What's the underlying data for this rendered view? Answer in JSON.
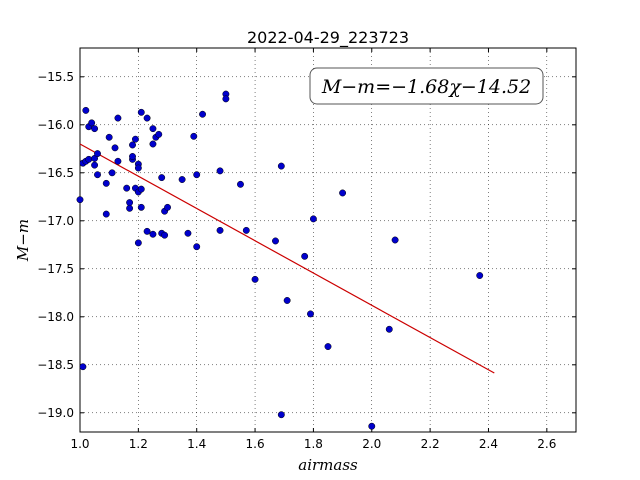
{
  "chart_data": {
    "type": "scatter",
    "title": "2022-04-29_223723",
    "xlabel": "airmass",
    "ylabel": "M−m",
    "xlim": [
      1.0,
      2.7
    ],
    "ylim": [
      -19.2,
      -15.2
    ],
    "y_inverted": true,
    "grid": true,
    "xticks": [
      1.0,
      1.2,
      1.4,
      1.6,
      1.8,
      2.0,
      2.2,
      2.4,
      2.6
    ],
    "xtick_labels": [
      "1.0",
      "1.2",
      "1.4",
      "1.6",
      "1.8",
      "2.0",
      "2.2",
      "2.4",
      "2.6"
    ],
    "yticks": [
      -15.5,
      -16.0,
      -16.5,
      -17.0,
      -17.5,
      -18.0,
      -18.5,
      -19.0
    ],
    "ytick_labels": [
      "−15.5",
      "−16.0",
      "−16.5",
      "−17.0",
      "−17.5",
      "−18.0",
      "−18.5",
      "−19.0"
    ],
    "annotation": "M−m=−1.68χ−14.52",
    "fit_line": {
      "slope": -1.68,
      "intercept": -14.52,
      "x_range": [
        1.0,
        2.42
      ],
      "color": "#cc0000"
    },
    "marker_color": "#0000cc",
    "points": [
      [
        1.0,
        -16.78
      ],
      [
        1.01,
        -18.52
      ],
      [
        1.01,
        -16.4
      ],
      [
        1.02,
        -16.38
      ],
      [
        1.02,
        -15.85
      ],
      [
        1.03,
        -16.36
      ],
      [
        1.03,
        -16.02
      ],
      [
        1.04,
        -15.98
      ],
      [
        1.05,
        -16.04
      ],
      [
        1.05,
        -16.35
      ],
      [
        1.05,
        -16.42
      ],
      [
        1.06,
        -16.52
      ],
      [
        1.06,
        -16.3
      ],
      [
        1.09,
        -16.61
      ],
      [
        1.09,
        -16.93
      ],
      [
        1.1,
        -16.13
      ],
      [
        1.11,
        -16.5
      ],
      [
        1.12,
        -16.24
      ],
      [
        1.13,
        -16.38
      ],
      [
        1.13,
        -15.93
      ],
      [
        1.16,
        -16.66
      ],
      [
        1.17,
        -16.81
      ],
      [
        1.17,
        -16.87
      ],
      [
        1.18,
        -16.36
      ],
      [
        1.18,
        -16.21
      ],
      [
        1.18,
        -16.33
      ],
      [
        1.19,
        -16.15
      ],
      [
        1.19,
        -16.66
      ],
      [
        1.2,
        -16.41
      ],
      [
        1.2,
        -16.45
      ],
      [
        1.2,
        -16.7
      ],
      [
        1.2,
        -17.23
      ],
      [
        1.21,
        -16.67
      ],
      [
        1.21,
        -16.86
      ],
      [
        1.21,
        -15.87
      ],
      [
        1.23,
        -15.93
      ],
      [
        1.23,
        -17.11
      ],
      [
        1.25,
        -16.2
      ],
      [
        1.25,
        -16.04
      ],
      [
        1.25,
        -17.14
      ],
      [
        1.26,
        -16.13
      ],
      [
        1.27,
        -16.1
      ],
      [
        1.28,
        -16.55
      ],
      [
        1.28,
        -17.13
      ],
      [
        1.29,
        -16.9
      ],
      [
        1.29,
        -17.15
      ],
      [
        1.3,
        -16.86
      ],
      [
        1.35,
        -16.57
      ],
      [
        1.37,
        -17.13
      ],
      [
        1.39,
        -16.12
      ],
      [
        1.4,
        -17.27
      ],
      [
        1.4,
        -16.52
      ],
      [
        1.42,
        -15.89
      ],
      [
        1.48,
        -16.48
      ],
      [
        1.48,
        -17.1
      ],
      [
        1.5,
        -15.68
      ],
      [
        1.5,
        -15.73
      ],
      [
        1.55,
        -16.62
      ],
      [
        1.57,
        -17.1
      ],
      [
        1.6,
        -17.61
      ],
      [
        1.67,
        -17.21
      ],
      [
        1.69,
        -16.43
      ],
      [
        1.69,
        -19.02
      ],
      [
        1.71,
        -17.83
      ],
      [
        1.77,
        -17.37
      ],
      [
        1.79,
        -17.97
      ],
      [
        1.8,
        -16.98
      ],
      [
        1.85,
        -18.31
      ],
      [
        1.9,
        -16.71
      ],
      [
        2.0,
        -19.14
      ],
      [
        2.06,
        -18.13
      ],
      [
        2.08,
        -17.2
      ],
      [
        2.37,
        -17.57
      ]
    ]
  }
}
